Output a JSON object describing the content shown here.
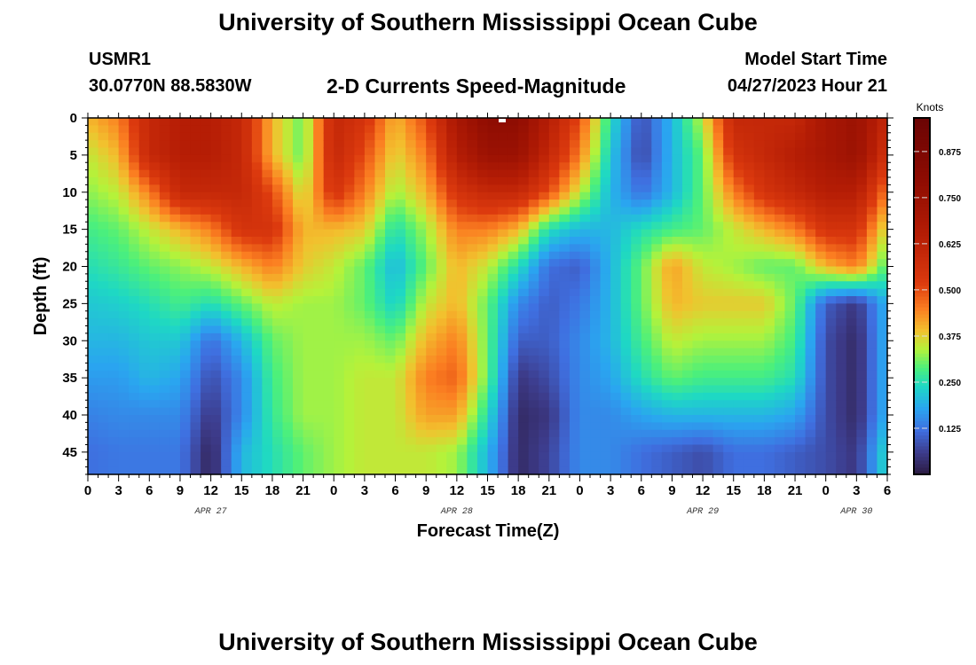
{
  "header": {
    "title": "University of Southern Mississippi Ocean Cube",
    "station": "USMR1",
    "coords": "30.0770N  88.5830W",
    "subtitle": "2-D Currents Speed-Magnitude",
    "model_start_label": "Model Start Time",
    "model_start_value": "04/27/2023 Hour 21",
    "footer_title": "University of Southern Mississippi Ocean Cube"
  },
  "chart_data": {
    "type": "heatmap",
    "xlabel": "Forecast Time(Z)",
    "ylabel": "Depth (ft)",
    "x_hours": [
      0,
      3,
      6,
      9,
      12,
      15,
      18,
      21,
      24,
      27,
      30,
      33,
      36,
      39,
      42,
      45,
      48,
      51,
      54,
      57,
      60,
      63,
      66,
      69,
      72,
      75,
      78
    ],
    "x_tick_labels": [
      "0",
      "3",
      "6",
      "9",
      "12",
      "15",
      "18",
      "21",
      "0",
      "3",
      "6",
      "9",
      "12",
      "15",
      "18",
      "21",
      "0",
      "3",
      "6",
      "9",
      "12",
      "15",
      "18",
      "21",
      "0",
      "3",
      "6"
    ],
    "date_labels": [
      {
        "text": "APR 27",
        "hour": 12
      },
      {
        "text": "APR 28",
        "hour": 36
      },
      {
        "text": "APR 29",
        "hour": 60
      },
      {
        "text": "APR 30",
        "hour": 75
      }
    ],
    "depths": [
      0,
      5,
      10,
      15,
      20,
      25,
      30,
      35,
      40,
      45,
      48
    ],
    "y_tick_labels": [
      "0",
      "5",
      "10",
      "15",
      "20",
      "25",
      "30",
      "35",
      "40",
      "45"
    ],
    "ylim": [
      0,
      48
    ],
    "xlim": [
      0,
      78
    ],
    "colorbar": {
      "label": "Knots",
      "ticks": [
        "0.125",
        "0.250",
        "0.375",
        "0.500",
        "0.625",
        "0.750",
        "0.875"
      ],
      "range": [
        0,
        0.966
      ]
    },
    "values_by_column": [
      [
        0.4,
        0.35,
        0.32,
        0.28,
        0.25,
        0.22,
        0.2,
        0.17,
        0.14,
        0.12,
        0.12
      ],
      [
        0.45,
        0.4,
        0.35,
        0.3,
        0.27,
        0.23,
        0.2,
        0.17,
        0.15,
        0.13,
        0.13
      ],
      [
        0.6,
        0.6,
        0.45,
        0.35,
        0.3,
        0.25,
        0.22,
        0.2,
        0.15,
        0.13,
        0.13
      ],
      [
        0.65,
        0.65,
        0.6,
        0.4,
        0.32,
        0.28,
        0.22,
        0.18,
        0.15,
        0.13,
        0.13
      ],
      [
        0.65,
        0.65,
        0.6,
        0.45,
        0.35,
        0.25,
        0.12,
        0.08,
        0.05,
        0.02,
        0.02
      ],
      [
        0.6,
        0.6,
        0.6,
        0.55,
        0.4,
        0.3,
        0.2,
        0.15,
        0.15,
        0.2,
        0.2
      ],
      [
        0.4,
        0.4,
        0.5,
        0.55,
        0.45,
        0.35,
        0.3,
        0.28,
        0.27,
        0.25,
        0.25
      ],
      [
        0.3,
        0.3,
        0.35,
        0.4,
        0.38,
        0.33,
        0.33,
        0.33,
        0.33,
        0.3,
        0.3
      ],
      [
        0.6,
        0.6,
        0.55,
        0.4,
        0.35,
        0.33,
        0.33,
        0.33,
        0.33,
        0.33,
        0.33
      ],
      [
        0.55,
        0.5,
        0.45,
        0.38,
        0.3,
        0.3,
        0.33,
        0.35,
        0.35,
        0.35,
        0.35
      ],
      [
        0.4,
        0.37,
        0.33,
        0.25,
        0.2,
        0.23,
        0.3,
        0.35,
        0.35,
        0.35,
        0.35
      ],
      [
        0.5,
        0.45,
        0.4,
        0.33,
        0.3,
        0.35,
        0.4,
        0.45,
        0.42,
        0.35,
        0.35
      ],
      [
        0.7,
        0.65,
        0.55,
        0.45,
        0.4,
        0.4,
        0.45,
        0.48,
        0.42,
        0.33,
        0.33
      ],
      [
        0.8,
        0.75,
        0.6,
        0.45,
        0.35,
        0.3,
        0.3,
        0.3,
        0.25,
        0.2,
        0.2
      ],
      [
        0.8,
        0.75,
        0.6,
        0.4,
        0.25,
        0.15,
        0.1,
        0.05,
        0.03,
        0.03,
        0.03
      ],
      [
        0.65,
        0.6,
        0.5,
        0.25,
        0.12,
        0.1,
        0.1,
        0.08,
        0.05,
        0.07,
        0.07
      ],
      [
        0.5,
        0.45,
        0.35,
        0.2,
        0.1,
        0.13,
        0.15,
        0.15,
        0.15,
        0.15,
        0.15
      ],
      [
        0.25,
        0.22,
        0.2,
        0.2,
        0.2,
        0.2,
        0.2,
        0.18,
        0.15,
        0.15,
        0.15
      ],
      [
        0.08,
        0.07,
        0.12,
        0.25,
        0.3,
        0.3,
        0.28,
        0.25,
        0.18,
        0.12,
        0.12
      ],
      [
        0.2,
        0.2,
        0.2,
        0.28,
        0.42,
        0.4,
        0.35,
        0.3,
        0.2,
        0.1,
        0.1
      ],
      [
        0.35,
        0.3,
        0.3,
        0.3,
        0.35,
        0.38,
        0.33,
        0.28,
        0.2,
        0.08,
        0.08
      ],
      [
        0.6,
        0.55,
        0.45,
        0.35,
        0.33,
        0.38,
        0.33,
        0.28,
        0.2,
        0.12,
        0.12
      ],
      [
        0.6,
        0.6,
        0.55,
        0.4,
        0.3,
        0.38,
        0.33,
        0.28,
        0.2,
        0.12,
        0.12
      ],
      [
        0.6,
        0.65,
        0.6,
        0.45,
        0.3,
        0.3,
        0.28,
        0.25,
        0.18,
        0.1,
        0.1
      ],
      [
        0.7,
        0.7,
        0.65,
        0.55,
        0.4,
        0.1,
        0.08,
        0.08,
        0.08,
        0.08,
        0.08
      ],
      [
        0.75,
        0.75,
        0.65,
        0.55,
        0.45,
        0.05,
        0.03,
        0.03,
        0.03,
        0.05,
        0.05
      ],
      [
        0.6,
        0.55,
        0.45,
        0.35,
        0.28,
        0.2,
        0.2,
        0.2,
        0.2,
        0.25,
        0.25
      ]
    ]
  }
}
